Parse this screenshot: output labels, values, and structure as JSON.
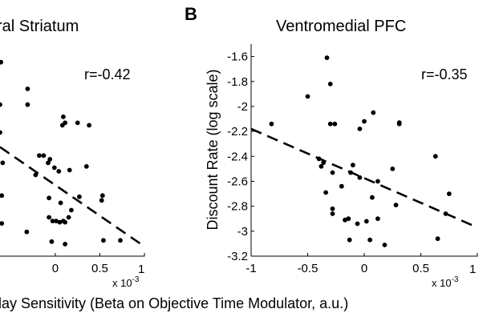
{
  "chart_data": [
    {
      "panel_label": "",
      "title": "ral Striatum",
      "type": "scatter",
      "xlabel": "",
      "ylabel": "",
      "x_ticks": [
        "0",
        "0.5"
      ],
      "x_tick_values": [
        0,
        0.5
      ],
      "x_edge_tick": "1",
      "x_multiplier_base": "x 10",
      "x_multiplier_exp": "-3",
      "y_ticks": [],
      "annotation": "r=-0.42",
      "xlim": [
        -0.62,
        1.0
      ],
      "ylim": [
        -3.2,
        -1.45
      ],
      "points": [
        {
          "x": -0.61,
          "y": -1.6
        },
        {
          "x": -0.62,
          "y": -1.95
        },
        {
          "x": -0.62,
          "y": -2.18
        },
        {
          "x": -0.31,
          "y": -1.82
        },
        {
          "x": -0.31,
          "y": -1.95
        },
        {
          "x": -0.59,
          "y": -2.43
        },
        {
          "x": 0.09,
          "y": -2.05
        },
        {
          "x": 0.11,
          "y": -2.1
        },
        {
          "x": 0.08,
          "y": -2.12
        },
        {
          "x": 0.25,
          "y": -2.1
        },
        {
          "x": 0.38,
          "y": -2.12
        },
        {
          "x": -0.18,
          "y": -2.37
        },
        {
          "x": -0.13,
          "y": -2.37
        },
        {
          "x": -0.06,
          "y": -2.4
        },
        {
          "x": -0.01,
          "y": -2.47
        },
        {
          "x": -0.08,
          "y": -2.43
        },
        {
          "x": 0.04,
          "y": -2.5
        },
        {
          "x": -0.22,
          "y": -2.53
        },
        {
          "x": 0.16,
          "y": -2.49
        },
        {
          "x": 0.35,
          "y": -2.46
        },
        {
          "x": -0.6,
          "y": -2.7
        },
        {
          "x": -0.6,
          "y": -2.93
        },
        {
          "x": -0.07,
          "y": -2.72
        },
        {
          "x": 0.06,
          "y": -2.76
        },
        {
          "x": 0.27,
          "y": -2.71
        },
        {
          "x": 0.18,
          "y": -2.82
        },
        {
          "x": -0.07,
          "y": -2.88
        },
        {
          "x": -0.03,
          "y": -2.91
        },
        {
          "x": 0.01,
          "y": -2.91
        },
        {
          "x": 0.05,
          "y": -2.92
        },
        {
          "x": 0.09,
          "y": -2.91
        },
        {
          "x": 0.11,
          "y": -2.92
        },
        {
          "x": 0.15,
          "y": -2.88
        },
        {
          "x": 0.53,
          "y": -2.7
        },
        {
          "x": 0.52,
          "y": -2.74
        },
        {
          "x": -0.32,
          "y": -3.0
        },
        {
          "x": -0.04,
          "y": -3.08
        },
        {
          "x": 0.11,
          "y": -3.1
        },
        {
          "x": 0.54,
          "y": -3.07
        },
        {
          "x": 0.73,
          "y": -3.07
        }
      ],
      "fit": {
        "x0": -0.62,
        "y0": -2.3,
        "x1": 1.0,
        "y1": -3.12
      }
    },
    {
      "panel_label": "B",
      "title": "Ventromedial PFC",
      "type": "scatter",
      "xlabel": "",
      "ylabel": "Discount Rate (log scale)",
      "x_ticks": [
        "-1",
        "-0.5",
        "0",
        "0.5"
      ],
      "x_tick_values": [
        -1,
        -0.5,
        0,
        0.5
      ],
      "x_edge_tick": "1",
      "x_multiplier_base": "x 10",
      "x_multiplier_exp": "-3",
      "y_ticks": [
        "-1.6",
        "-1.8",
        "-2",
        "-2.2",
        "-2.4",
        "-2.6",
        "-2.8",
        "-3",
        "-3.2"
      ],
      "y_tick_values": [
        -1.6,
        -1.8,
        -2.0,
        -2.2,
        -2.4,
        -2.6,
        -2.8,
        -3.0,
        -3.2
      ],
      "annotation": "r=-0.35",
      "xlim": [
        -1,
        1
      ],
      "ylim": [
        -3.2,
        -1.5
      ],
      "points": [
        {
          "x": -0.82,
          "y": -2.14
        },
        {
          "x": -0.5,
          "y": -1.92
        },
        {
          "x": -0.33,
          "y": -1.61
        },
        {
          "x": -0.3,
          "y": -1.82
        },
        {
          "x": -0.3,
          "y": -2.14
        },
        {
          "x": -0.26,
          "y": -2.14
        },
        {
          "x": 0.0,
          "y": -2.12
        },
        {
          "x": -0.04,
          "y": -2.18
        },
        {
          "x": 0.08,
          "y": -2.05
        },
        {
          "x": 0.31,
          "y": -2.13
        },
        {
          "x": 0.31,
          "y": -2.14
        },
        {
          "x": -0.4,
          "y": -2.42
        },
        {
          "x": -0.36,
          "y": -2.45
        },
        {
          "x": -0.38,
          "y": -2.48
        },
        {
          "x": -0.28,
          "y": -2.53
        },
        {
          "x": -0.12,
          "y": -2.53
        },
        {
          "x": -0.1,
          "y": -2.47
        },
        {
          "x": -0.04,
          "y": -2.57
        },
        {
          "x": 0.12,
          "y": -2.6
        },
        {
          "x": 0.25,
          "y": -2.5
        },
        {
          "x": -0.34,
          "y": -2.69
        },
        {
          "x": -0.2,
          "y": -2.64
        },
        {
          "x": 0.63,
          "y": -2.4
        },
        {
          "x": -0.28,
          "y": -2.82
        },
        {
          "x": -0.28,
          "y": -2.86
        },
        {
          "x": -0.17,
          "y": -2.91
        },
        {
          "x": -0.14,
          "y": -2.9
        },
        {
          "x": -0.06,
          "y": -2.94
        },
        {
          "x": 0.02,
          "y": -2.92
        },
        {
          "x": 0.07,
          "y": -2.73
        },
        {
          "x": 0.28,
          "y": -2.79
        },
        {
          "x": 0.12,
          "y": -2.9
        },
        {
          "x": 0.75,
          "y": -2.7
        },
        {
          "x": 0.72,
          "y": -2.86
        },
        {
          "x": -0.13,
          "y": -3.07
        },
        {
          "x": 0.05,
          "y": -3.07
        },
        {
          "x": 0.18,
          "y": -3.11
        },
        {
          "x": 0.65,
          "y": -3.06
        }
      ],
      "fit": {
        "x0": -1.0,
        "y0": -2.18,
        "x1": 1.0,
        "y1": -2.97
      }
    }
  ],
  "shared_xlabel": "lay Sensitivity (Beta on Objective Time Modulator, a.u.)"
}
